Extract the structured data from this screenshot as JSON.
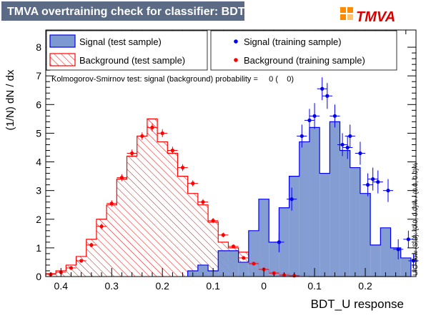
{
  "title_bar": {
    "text": "TMVA overtraining check for classifier: BDT_U",
    "bg": "#5b6b86"
  },
  "logo": {
    "text": "TMVA",
    "accent": "#ff8a00",
    "text_color": "#d60000"
  },
  "legend": {
    "signal_test": "Signal (test sample)",
    "signal_train": "Signal (training sample)",
    "background_test": "Background (test sample)",
    "background_train": "Background (training sample)"
  },
  "ks_text": "Kolmogorov-Smirnov test: signal (background) probability =     0 (    0)",
  "side_text": "U/O-flow (S,B): (0.0, 0.0)% / (0.0, 0.0)%",
  "colors": {
    "signal_fill": "#7d99d1",
    "signal_line": "#0000ee",
    "background_line": "#ff0000",
    "background_point": "#ff0000",
    "signal_point": "#0000ee"
  },
  "chart_data": {
    "type": "histogram",
    "xlabel": "BDT_U response",
    "ylabel": "(1/N) dN / dx",
    "xlim": [
      -0.43,
      0.3
    ],
    "ylim": [
      0,
      8.6
    ],
    "xticks": [
      -0.4,
      -0.3,
      -0.2,
      -0.1,
      0,
      0.1,
      0.2
    ],
    "xtick_labels": [
      "0.4",
      "0.3",
      "0.2",
      "0.1",
      "0",
      "0.1",
      "0.2"
    ],
    "yticks": [
      0,
      1,
      2,
      3,
      4,
      5,
      6,
      7,
      8
    ],
    "bin_edges": [
      -0.43,
      -0.41,
      -0.39,
      -0.37,
      -0.35,
      -0.33,
      -0.31,
      -0.29,
      -0.27,
      -0.25,
      -0.23,
      -0.21,
      -0.19,
      -0.17,
      -0.15,
      -0.13,
      -0.11,
      -0.09,
      -0.07,
      -0.05,
      -0.03,
      -0.01,
      0.01,
      0.03,
      0.05,
      0.07,
      0.09,
      0.11,
      0.13,
      0.15,
      0.17,
      0.19,
      0.21,
      0.23,
      0.25,
      0.27,
      0.29
    ],
    "signal_test": [
      0,
      0,
      0,
      0,
      0,
      0,
      0,
      0,
      0,
      0,
      0,
      0,
      0,
      0,
      0.2,
      0.4,
      0.2,
      0.9,
      0.9,
      0.5,
      1.6,
      2.7,
      1.2,
      2.4,
      3.5,
      4.7,
      5.2,
      3.6,
      5.4,
      4.4,
      3.8,
      2.9,
      1.1,
      1.7,
      1.0,
      0.65
    ],
    "background_test": [
      0.1,
      0.2,
      0.4,
      0.7,
      1.3,
      2.0,
      2.5,
      3.4,
      4.2,
      4.9,
      5.5,
      4.7,
      4.3,
      3.5,
      2.9,
      2.5,
      1.9,
      1.2,
      1.0,
      0.85,
      0.5,
      0.25,
      0.15,
      0.1,
      0.05,
      0.05,
      0,
      0,
      0,
      0,
      0,
      0,
      0,
      0,
      0,
      0
    ],
    "signal_train": [
      {
        "x": 0.03,
        "y": 1.2,
        "xe": 0.01,
        "ye": 0.35
      },
      {
        "x": 0.055,
        "y": 2.7,
        "xe": 0.01,
        "ye": 0.4
      },
      {
        "x": 0.075,
        "y": 4.9,
        "xe": 0.01,
        "ye": 0.4
      },
      {
        "x": 0.09,
        "y": 5.45,
        "xe": 0.01,
        "ye": 0.4
      },
      {
        "x": 0.1,
        "y": 5.6,
        "xe": 0.01,
        "ye": 0.45
      },
      {
        "x": 0.115,
        "y": 6.55,
        "xe": 0.01,
        "ye": 0.4
      },
      {
        "x": 0.125,
        "y": 6.3,
        "xe": 0.01,
        "ye": 0.45
      },
      {
        "x": 0.14,
        "y": 5.6,
        "xe": 0.01,
        "ye": 0.4
      },
      {
        "x": 0.155,
        "y": 4.6,
        "xe": 0.01,
        "ye": 0.4
      },
      {
        "x": 0.165,
        "y": 4.5,
        "xe": 0.01,
        "ye": 0.4
      },
      {
        "x": 0.17,
        "y": 4.9,
        "xe": 0.01,
        "ye": 0.4
      },
      {
        "x": 0.19,
        "y": 4.3,
        "xe": 0.01,
        "ye": 0.4
      },
      {
        "x": 0.205,
        "y": 3.2,
        "xe": 0.01,
        "ye": 0.4
      },
      {
        "x": 0.215,
        "y": 3.4,
        "xe": 0.01,
        "ye": 0.4
      },
      {
        "x": 0.225,
        "y": 3.3,
        "xe": 0.01,
        "ye": 0.4
      },
      {
        "x": 0.245,
        "y": 3.0,
        "xe": 0.01,
        "ye": 0.4
      },
      {
        "x": 0.265,
        "y": 0.95,
        "xe": 0.01,
        "ye": 0.35
      },
      {
        "x": 0.285,
        "y": 1.3,
        "xe": 0.01,
        "ye": 0.3
      },
      {
        "x": 0.295,
        "y": 0.55,
        "xe": 0.01,
        "ye": 0.25
      }
    ],
    "background_train": [
      {
        "x": -0.42,
        "y": 0.08,
        "xe": 0.01,
        "ye": 0.03
      },
      {
        "x": -0.4,
        "y": 0.15,
        "xe": 0.01,
        "ye": 0.04
      },
      {
        "x": -0.38,
        "y": 0.3,
        "xe": 0.01,
        "ye": 0.05
      },
      {
        "x": -0.36,
        "y": 0.55,
        "xe": 0.01,
        "ye": 0.06
      },
      {
        "x": -0.34,
        "y": 1.1,
        "xe": 0.01,
        "ye": 0.08
      },
      {
        "x": -0.32,
        "y": 1.75,
        "xe": 0.01,
        "ye": 0.1
      },
      {
        "x": -0.3,
        "y": 2.55,
        "xe": 0.01,
        "ye": 0.11
      },
      {
        "x": -0.28,
        "y": 3.45,
        "xe": 0.01,
        "ye": 0.12
      },
      {
        "x": -0.26,
        "y": 4.3,
        "xe": 0.01,
        "ye": 0.13
      },
      {
        "x": -0.24,
        "y": 4.9,
        "xe": 0.01,
        "ye": 0.13
      },
      {
        "x": -0.22,
        "y": 5.2,
        "xe": 0.01,
        "ye": 0.14
      },
      {
        "x": -0.2,
        "y": 5.0,
        "xe": 0.01,
        "ye": 0.14
      },
      {
        "x": -0.18,
        "y": 4.4,
        "xe": 0.01,
        "ye": 0.13
      },
      {
        "x": -0.16,
        "y": 3.8,
        "xe": 0.01,
        "ye": 0.12
      },
      {
        "x": -0.14,
        "y": 3.25,
        "xe": 0.01,
        "ye": 0.11
      },
      {
        "x": -0.12,
        "y": 2.6,
        "xe": 0.01,
        "ye": 0.1
      },
      {
        "x": -0.1,
        "y": 1.95,
        "xe": 0.01,
        "ye": 0.09
      },
      {
        "x": -0.08,
        "y": 1.45,
        "xe": 0.01,
        "ye": 0.08
      },
      {
        "x": -0.06,
        "y": 1.05,
        "xe": 0.01,
        "ye": 0.07
      },
      {
        "x": -0.04,
        "y": 0.65,
        "xe": 0.01,
        "ye": 0.06
      },
      {
        "x": -0.02,
        "y": 0.45,
        "xe": 0.01,
        "ye": 0.05
      },
      {
        "x": 0.0,
        "y": 0.25,
        "xe": 0.01,
        "ye": 0.04
      },
      {
        "x": 0.02,
        "y": 0.12,
        "xe": 0.01,
        "ye": 0.03
      },
      {
        "x": 0.04,
        "y": 0.05,
        "xe": 0.01,
        "ye": 0.02
      },
      {
        "x": 0.06,
        "y": 0.03,
        "xe": 0.01,
        "ye": 0.02
      }
    ]
  }
}
